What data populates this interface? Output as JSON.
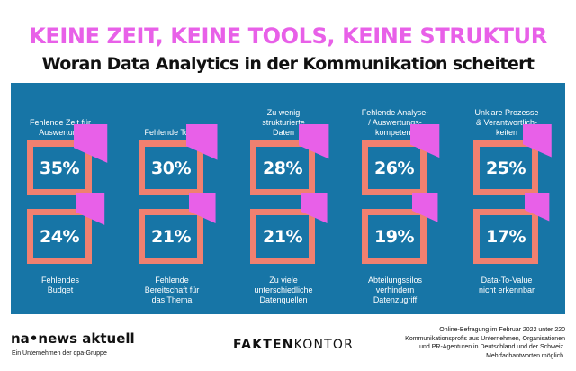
{
  "headline": "KEINE ZEIT, KEINE TOOLS, KEINE STRUKTUR",
  "subline": "Woran Data Analytics in der Kommunikation scheitert",
  "colors": {
    "panel": "#1775a6",
    "box_border": "#f08070",
    "highlight": "#e860e8",
    "text_light": "#ffffff"
  },
  "chart_data": {
    "type": "table",
    "unit": "%",
    "items": [
      {
        "label": "Fehlende Zeit für Auswertung",
        "value": 35
      },
      {
        "label": "Fehlende Tools",
        "value": 30
      },
      {
        "label": "Zu wenig strukturierte Daten",
        "value": 28
      },
      {
        "label": "Fehlende Analyse- / Auswertungs-kompetenz",
        "value": 26
      },
      {
        "label": "Unklare Prozesse & Verantwortlich-keiten",
        "value": 25
      },
      {
        "label": "Fehlendes Budget",
        "value": 24
      },
      {
        "label": "Fehlende Bereitschaft für das Thema",
        "value": 21
      },
      {
        "label": "Zu viele unterschiedliche Datenquellen",
        "value": 21
      },
      {
        "label": "Abteilungssilos verhindern Datenzugriff",
        "value": 19
      },
      {
        "label": "Data-To-Value nicht erkennbar",
        "value": 17
      }
    ],
    "display": {
      "top_row": [
        {
          "label_lines": [
            "Fehlende Zeit für",
            "Auswertung"
          ],
          "value_text": "35%"
        },
        {
          "label_lines": [
            "Fehlende Tools"
          ],
          "value_text": "30%"
        },
        {
          "label_lines": [
            "Zu wenig",
            "strukturierte",
            "Daten"
          ],
          "value_text": "28%"
        },
        {
          "label_lines": [
            "Fehlende Analyse-",
            "/ Auswertungs-",
            "kompetenz"
          ],
          "value_text": "26%"
        },
        {
          "label_lines": [
            "Unklare Prozesse",
            "& Verantwortlich-",
            "keiten"
          ],
          "value_text": "25%"
        }
      ],
      "bottom_row": [
        {
          "label_lines": [
            "Fehlendes",
            "Budget"
          ],
          "value_text": "24%"
        },
        {
          "label_lines": [
            "Fehlende",
            "Bereitschaft für",
            "das Thema"
          ],
          "value_text": "21%"
        },
        {
          "label_lines": [
            "Zu viele",
            "unterschiedliche",
            "Datenquellen"
          ],
          "value_text": "21%"
        },
        {
          "label_lines": [
            "Abteilungssilos",
            "verhindern",
            "Datenzugriff"
          ],
          "value_text": "19%"
        },
        {
          "label_lines": [
            "Data-To-Value",
            "nicht erkennbar"
          ],
          "value_text": "17%"
        }
      ]
    }
  },
  "footer": {
    "logo_left": "na•news aktuell",
    "logo_left_sub": "Ein Unternehmen der dpa-Gruppe",
    "logo_right_bold": "FAKTEN",
    "logo_right_light": "KONTOR",
    "note": "Online-Befragung im Februar 2022 unter 220 Kommunikationsprofis aus Unternehmen, Organisationen und PR-Agenturen in Deutschland und der Schweiz. Mehrfachantworten möglich."
  }
}
